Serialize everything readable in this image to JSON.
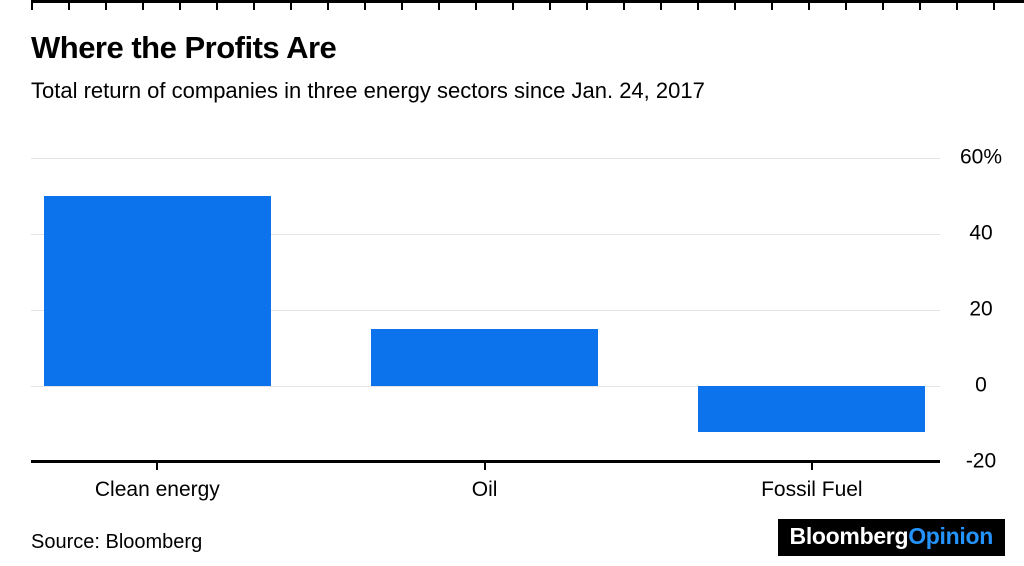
{
  "header": {
    "title": "Where the Profits Are",
    "subtitle": "Total return of companies in three energy sectors since Jan. 24, 2017"
  },
  "chart_data": {
    "type": "bar",
    "categories": [
      "Clean energy",
      "Oil",
      "Fossil Fuel"
    ],
    "values": [
      50,
      15,
      -12
    ],
    "title": "Where the Profits Are",
    "subtitle": "Total return of companies in three energy sectors since Jan. 24, 2017",
    "xlabel": "",
    "ylabel": "",
    "ylim": [
      -20,
      60
    ],
    "yticks": [
      {
        "value": 60,
        "label": "60%"
      },
      {
        "value": 40,
        "label": "40"
      },
      {
        "value": 20,
        "label": "20"
      },
      {
        "value": 0,
        "label": "0"
      },
      {
        "value": -20,
        "label": "-20"
      }
    ],
    "bar_color": "#0d73ec",
    "grid": true,
    "legend": "none",
    "y_tick_position": "right"
  },
  "footer": {
    "source": "Source: Bloomberg",
    "logo": {
      "part1": "Bloomberg",
      "part2": "Opinion",
      "bg": "#000000",
      "part1_color": "#ffffff",
      "part2_color": "#2493fb"
    }
  }
}
